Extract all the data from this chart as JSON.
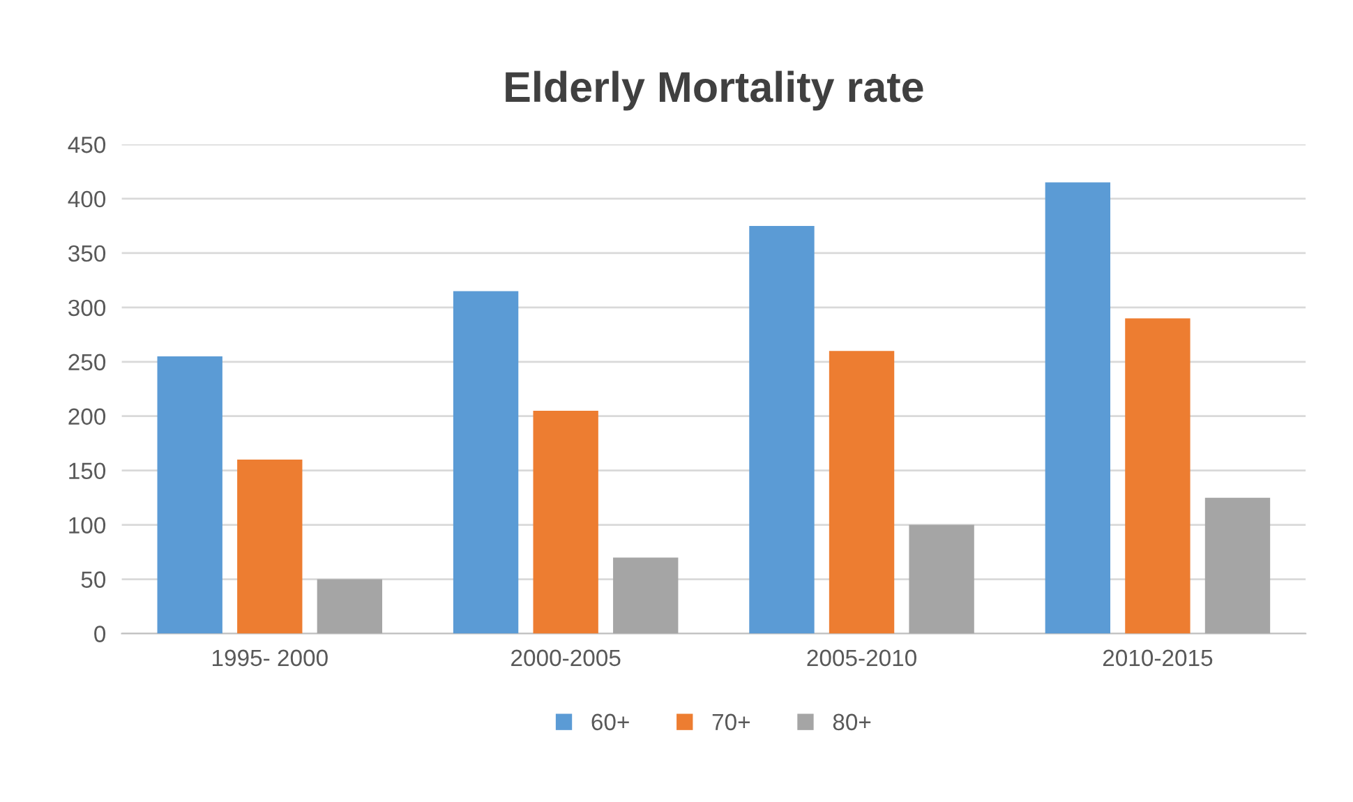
{
  "chart_data": {
    "type": "bar",
    "title": "Elderly Mortality rate",
    "categories": [
      "1995- 2000",
      "2000-2005",
      "2005-2010",
      "2010-2015"
    ],
    "series": [
      {
        "name": "60+",
        "color": "#5b9bd5",
        "values": [
          255,
          315,
          375,
          415
        ]
      },
      {
        "name": "70+",
        "color": "#ed7d31",
        "values": [
          160,
          205,
          260,
          290
        ]
      },
      {
        "name": "80+",
        "color": "#a5a5a5",
        "values": [
          50,
          70,
          100,
          125
        ]
      }
    ],
    "ylim": [
      0,
      450
    ],
    "yticks": [
      0,
      50,
      100,
      150,
      200,
      250,
      300,
      350,
      400,
      450
    ],
    "grid": "y",
    "legend": "bottom"
  }
}
